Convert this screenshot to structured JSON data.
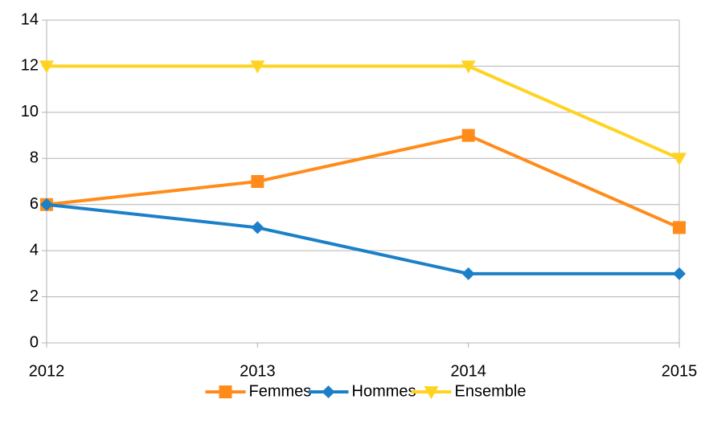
{
  "chart_data": {
    "type": "line",
    "x": [
      2012,
      2013,
      2014,
      2015
    ],
    "xlim": [
      2012,
      2015
    ],
    "xticks": [
      2012,
      2013,
      2014,
      2015
    ],
    "ylim": [
      0,
      14
    ],
    "yticks": [
      0,
      2,
      4,
      6,
      8,
      10,
      12,
      14
    ],
    "grid": true,
    "legend": "bottom",
    "series": [
      {
        "name": "Femmes",
        "color": "#ff8c1a",
        "marker": "square",
        "values": [
          6,
          7,
          9,
          5
        ]
      },
      {
        "name": "Hommes",
        "color": "#1b80c8",
        "marker": "diamond",
        "values": [
          6,
          5,
          3,
          3
        ]
      },
      {
        "name": "Ensemble",
        "color": "#ffd320",
        "marker": "triangle-down",
        "values": [
          12,
          12,
          12,
          8
        ]
      }
    ]
  }
}
